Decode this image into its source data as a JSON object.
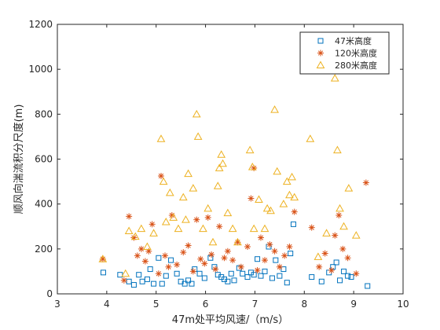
{
  "chart_data": {
    "type": "scatter",
    "title": "",
    "xlabel": "47m处平均风速/（m/s）",
    "ylabel": "顺风向湍流积分尺度(m)",
    "xlim": [
      3,
      10
    ],
    "ylim": [
      0,
      1200
    ],
    "x_ticks": [
      "3",
      "4",
      "5",
      "6",
      "7",
      "8",
      "9",
      "10"
    ],
    "y_ticks": [
      "0",
      "200",
      "400",
      "600",
      "800",
      "1000",
      "1200"
    ],
    "grid": false,
    "legend_position": "top-right",
    "series": [
      {
        "name": "47米高度",
        "marker": "square",
        "color": "#0072BD",
        "points": [
          [
            3.93,
            95
          ],
          [
            4.27,
            85
          ],
          [
            4.45,
            55
          ],
          [
            4.55,
            40
          ],
          [
            4.65,
            85
          ],
          [
            4.72,
            55
          ],
          [
            4.82,
            65
          ],
          [
            4.88,
            110
          ],
          [
            4.95,
            45
          ],
          [
            5.05,
            160
          ],
          [
            5.12,
            45
          ],
          [
            5.2,
            80
          ],
          [
            5.3,
            150
          ],
          [
            5.42,
            90
          ],
          [
            5.5,
            55
          ],
          [
            5.58,
            45
          ],
          [
            5.65,
            60
          ],
          [
            5.72,
            45
          ],
          [
            5.78,
            110
          ],
          [
            5.88,
            90
          ],
          [
            5.98,
            70
          ],
          [
            6.1,
            160
          ],
          [
            6.18,
            120
          ],
          [
            6.25,
            85
          ],
          [
            6.32,
            75
          ],
          [
            6.38,
            65
          ],
          [
            6.45,
            55
          ],
          [
            6.52,
            90
          ],
          [
            6.58,
            60
          ],
          [
            6.68,
            115
          ],
          [
            6.75,
            90
          ],
          [
            6.85,
            75
          ],
          [
            6.92,
            95
          ],
          [
            6.98,
            85
          ],
          [
            7.05,
            155
          ],
          [
            7.12,
            80
          ],
          [
            7.2,
            100
          ],
          [
            7.28,
            210
          ],
          [
            7.35,
            70
          ],
          [
            7.42,
            150
          ],
          [
            7.5,
            80
          ],
          [
            7.58,
            110
          ],
          [
            7.65,
            50
          ],
          [
            7.72,
            180
          ],
          [
            7.78,
            310
          ],
          [
            8.15,
            75
          ],
          [
            8.35,
            55
          ],
          [
            8.5,
            95
          ],
          [
            8.58,
            120
          ],
          [
            8.65,
            140
          ],
          [
            8.72,
            60
          ],
          [
            8.8,
            100
          ],
          [
            8.88,
            80
          ],
          [
            8.95,
            75
          ],
          [
            9.28,
            35
          ]
        ]
      },
      {
        "name": "120米高度",
        "marker": "asterisk",
        "color": "#D95319",
        "points": [
          [
            3.92,
            155
          ],
          [
            4.35,
            60
          ],
          [
            4.45,
            345
          ],
          [
            4.55,
            250
          ],
          [
            4.62,
            170
          ],
          [
            4.7,
            200
          ],
          [
            4.78,
            145
          ],
          [
            4.85,
            190
          ],
          [
            4.92,
            310
          ],
          [
            5.05,
            90
          ],
          [
            5.1,
            525
          ],
          [
            5.18,
            170
          ],
          [
            5.25,
            120
          ],
          [
            5.32,
            350
          ],
          [
            5.42,
            130
          ],
          [
            5.55,
            185
          ],
          [
            5.65,
            215
          ],
          [
            5.75,
            100
          ],
          [
            5.82,
            330
          ],
          [
            5.9,
            155
          ],
          [
            5.98,
            135
          ],
          [
            6.05,
            340
          ],
          [
            6.12,
            175
          ],
          [
            6.2,
            110
          ],
          [
            6.28,
            300
          ],
          [
            6.38,
            160
          ],
          [
            6.45,
            190
          ],
          [
            6.55,
            150
          ],
          [
            6.65,
            230
          ],
          [
            6.72,
            120
          ],
          [
            6.85,
            210
          ],
          [
            6.92,
            425
          ],
          [
            6.98,
            560
          ],
          [
            7.05,
            105
          ],
          [
            7.12,
            250
          ],
          [
            7.2,
            150
          ],
          [
            7.3,
            220
          ],
          [
            7.4,
            190
          ],
          [
            7.5,
            120
          ],
          [
            7.6,
            170
          ],
          [
            7.7,
            210
          ],
          [
            7.8,
            365
          ],
          [
            8.15,
            295
          ],
          [
            8.3,
            120
          ],
          [
            8.42,
            180
          ],
          [
            8.55,
            105
          ],
          [
            8.62,
            260
          ],
          [
            8.7,
            350
          ],
          [
            8.78,
            200
          ],
          [
            8.88,
            160
          ],
          [
            9.05,
            90
          ],
          [
            9.25,
            495
          ]
        ]
      },
      {
        "name": "280米高度",
        "marker": "triangle",
        "color": "#EDB120",
        "points": [
          [
            3.92,
            155
          ],
          [
            4.38,
            90
          ],
          [
            4.45,
            280
          ],
          [
            4.58,
            255
          ],
          [
            4.7,
            290
          ],
          [
            4.82,
            210
          ],
          [
            4.95,
            270
          ],
          [
            5.1,
            690
          ],
          [
            5.15,
            500
          ],
          [
            5.2,
            320
          ],
          [
            5.28,
            450
          ],
          [
            5.35,
            340
          ],
          [
            5.45,
            290
          ],
          [
            5.55,
            430
          ],
          [
            5.6,
            330
          ],
          [
            5.65,
            535
          ],
          [
            5.75,
            470
          ],
          [
            5.82,
            800
          ],
          [
            5.85,
            700
          ],
          [
            5.95,
            290
          ],
          [
            6.05,
            380
          ],
          [
            6.15,
            230
          ],
          [
            6.25,
            480
          ],
          [
            6.28,
            560
          ],
          [
            6.32,
            620
          ],
          [
            6.35,
            580
          ],
          [
            6.45,
            360
          ],
          [
            6.55,
            290
          ],
          [
            6.65,
            230
          ],
          [
            6.9,
            640
          ],
          [
            6.95,
            565
          ],
          [
            6.98,
            290
          ],
          [
            7.08,
            420
          ],
          [
            7.2,
            290
          ],
          [
            7.25,
            380
          ],
          [
            7.32,
            370
          ],
          [
            7.4,
            820
          ],
          [
            7.45,
            545
          ],
          [
            7.58,
            400
          ],
          [
            7.65,
            500
          ],
          [
            7.7,
            440
          ],
          [
            7.75,
            520
          ],
          [
            7.8,
            430
          ],
          [
            8.12,
            690
          ],
          [
            8.28,
            165
          ],
          [
            8.45,
            270
          ],
          [
            8.62,
            960
          ],
          [
            8.67,
            640
          ],
          [
            8.72,
            380
          ],
          [
            8.8,
            300
          ],
          [
            8.9,
            470
          ],
          [
            9.05,
            260
          ]
        ]
      }
    ]
  }
}
